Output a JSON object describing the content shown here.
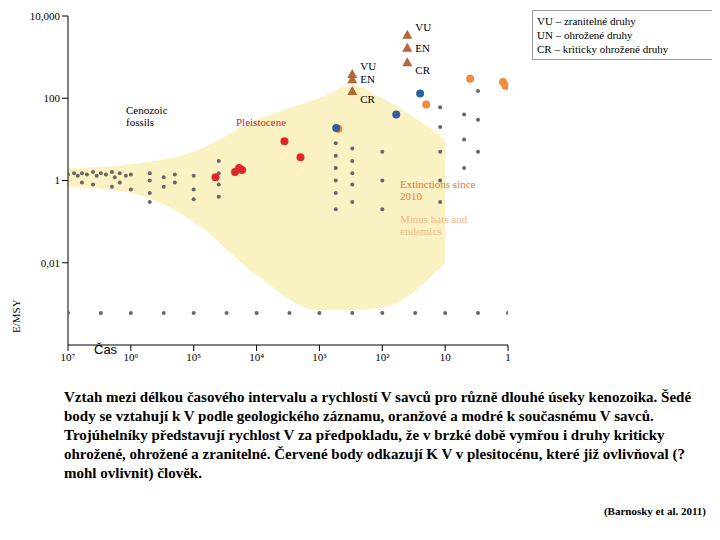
{
  "chart_data": {
    "type": "scatter",
    "log": true,
    "y_label": "E/MSY",
    "x_label": "Čas",
    "xlim": [
      10000000,
      1
    ],
    "xticks": [
      {
        "value": 10000000,
        "label": "10⁷"
      },
      {
        "value": 1000000,
        "label": "10⁶"
      },
      {
        "value": 100000,
        "label": "10⁵"
      },
      {
        "value": 10000,
        "label": "10⁴"
      },
      {
        "value": 1000,
        "label": "10³"
      },
      {
        "value": 100,
        "label": "10²"
      },
      10,
      1
    ],
    "ylim": [
      0.0001,
      10000
    ],
    "yticks": [
      {
        "value": 10000,
        "label": "10,000"
      },
      100,
      1,
      {
        "value": 0.01,
        "label": "0,01"
      }
    ],
    "band": {
      "x": [
        10000000,
        1000000,
        100000,
        10000,
        1000,
        300,
        100,
        10
      ],
      "low": [
        0.7,
        0.5,
        0.1,
        0.005,
        0.0007,
        0.0007,
        0.0008,
        0.01
      ],
      "high": [
        2,
        2.5,
        5,
        30,
        100,
        200,
        100,
        10
      ]
    },
    "series": [
      {
        "name": "Cenozoic fossils",
        "color": "#666666",
        "marker": "circle",
        "x": [
          10000000,
          8000000,
          7000000,
          6000000,
          5000000,
          4000000,
          3500000,
          3000000,
          2500000,
          2000000,
          1800000,
          1500000,
          1200000,
          1000000,
          6000000,
          4000000,
          2000000,
          1500000,
          1000000,
          500000,
          500000,
          500000,
          500000,
          300000,
          300000,
          200000,
          200000,
          100000,
          100000,
          100000,
          40000,
          40000,
          40000,
          40000,
          550,
          550,
          550,
          550,
          550,
          550,
          550,
          300,
          300,
          300,
          300,
          300,
          100,
          100,
          100,
          12,
          12,
          12,
          12,
          12,
          5,
          5,
          5,
          3,
          3,
          3,
          10000000,
          3000000,
          1000000,
          300000,
          100000,
          30000,
          10000,
          3000,
          1000,
          300,
          100,
          30,
          10,
          3,
          1
        ],
        "y": [
          1.4,
          1.5,
          1.3,
          1.5,
          1.4,
          1.6,
          1.3,
          1.5,
          1.4,
          1.6,
          1.2,
          1.5,
          1.3,
          1.4,
          0.9,
          0.8,
          0.7,
          0.9,
          0.6,
          1.5,
          1,
          0.5,
          0.3,
          1.2,
          0.7,
          1.4,
          0.9,
          1.3,
          0.6,
          0.35,
          3,
          1.5,
          0.8,
          0.4,
          20,
          8,
          4,
          2,
          1,
          0.5,
          0.2,
          6,
          3,
          1.5,
          0.8,
          0.3,
          5,
          1,
          0.2,
          60,
          20,
          5,
          1,
          0.3,
          40,
          10,
          2,
          150,
          30,
          5,
          0.0006,
          0.0006,
          0.0006,
          0.0006,
          0.0006,
          0.0006,
          0.0006,
          0.0006,
          0.0006,
          0.0006,
          0.0006,
          0.0006,
          0.0006,
          0.0006,
          0.0006
        ]
      },
      {
        "name": "Pleistocene",
        "color": "#e0262b",
        "marker": "circle",
        "x": [
          45000,
          22000,
          19000,
          17000,
          3600,
          2000
        ],
        "y": [
          1.2,
          1.6,
          2,
          1.8,
          9,
          3.7
        ]
      },
      {
        "name": "Extinctions since 2010",
        "color": "#f08a3c",
        "marker": "circle",
        "x": [
          500,
          20,
          4,
          1.2,
          1.1
        ],
        "y": [
          18,
          70,
          300,
          250,
          200
        ]
      },
      {
        "name": "Minus bats and endemics",
        "color": "#2f5f9e",
        "marker": "circle",
        "x": [
          540,
          60,
          25
        ],
        "y": [
          19,
          40,
          130
        ]
      },
      {
        "name": "VU",
        "color": "#b5653a",
        "marker": "triangle",
        "x": [
          300,
          40
        ],
        "y": [
          390,
          3500
        ]
      },
      {
        "name": "EN",
        "color": "#b5653a",
        "marker": "triangle",
        "x": [
          300,
          40
        ],
        "y": [
          290,
          1700
        ]
      },
      {
        "name": "CR",
        "color": "#b5653a",
        "marker": "triangle",
        "x": [
          300,
          40
        ],
        "y": [
          150,
          750
        ]
      }
    ],
    "annotations": [
      "VU – zranitelné druhy",
      "UN – ohrožené druhy",
      "CR – kriticky ohrožené druhy"
    ],
    "caption": "Vztah mezi délkou časového intervalu a rychlostí V savců pro různě dlouhé úseky kenozoika. Šedé body se vztahují k V podle geologického záznamu, oranžové a modré k současnému V savců. Trojúhelníky představují rychlost V za předpokladu, že v brzké době vymřou i druhy kriticky ohrožené, ohrožené a zranitelné. Červené body odkazují K V v plesitocénu, které již ovlivňoval (? mohl ovlivnit) člověk.",
    "source": "(Barnosky et al. 2011)"
  }
}
